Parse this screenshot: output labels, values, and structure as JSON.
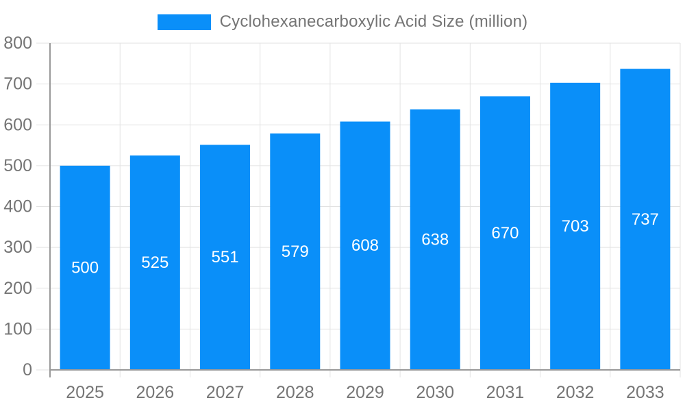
{
  "legend": {
    "label": "Cyclohexanecarboxylic Acid Size (million)",
    "swatch_color": "#0a8ff9"
  },
  "chart_data": {
    "type": "bar",
    "title": "Cyclohexanecarboxylic Acid Size (million)",
    "categories": [
      "2025",
      "2026",
      "2027",
      "2028",
      "2029",
      "2030",
      "2031",
      "2032",
      "2033"
    ],
    "values": [
      500,
      525,
      551,
      579,
      608,
      638,
      670,
      703,
      737
    ],
    "xlabel": "",
    "ylabel": "",
    "ylim": [
      0,
      800
    ],
    "ytick_step": 100,
    "grid": true,
    "legend_position": "top-center",
    "colors": {
      "bar": "#0a8ff9",
      "value_label": "#ffffff",
      "axis_text": "#757575",
      "grid_line": "#e2e2e2",
      "axis_line": "#999999",
      "background": "#ffffff"
    }
  }
}
